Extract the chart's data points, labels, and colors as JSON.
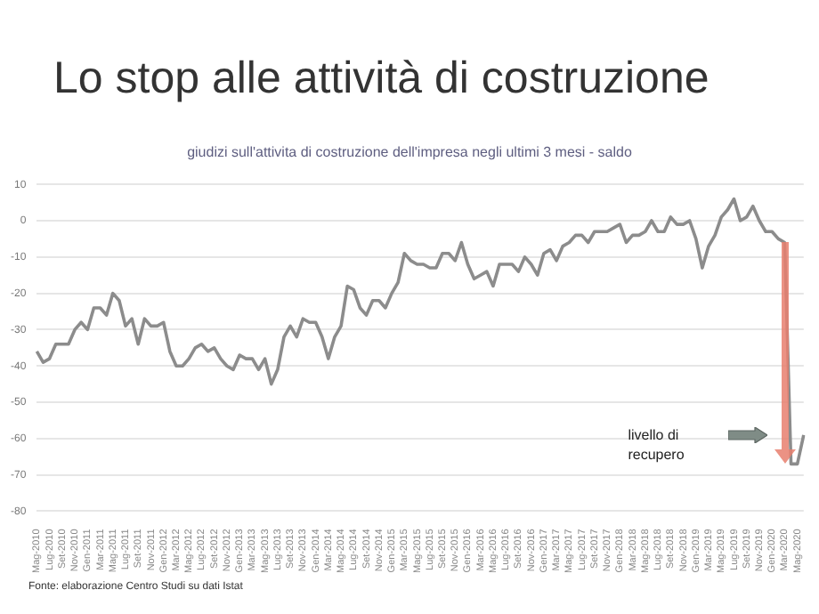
{
  "chart_data": {
    "type": "line",
    "title": "Lo stop alle attività di costruzione",
    "subtitle": "giudizi sull'attivita di costruzione dell'impresa negli ultimi 3 mesi - saldo",
    "annotations": [
      "livello di recupero",
      "Fonte: elaborazione Centro Studi su dati Istat"
    ],
    "categories": [
      "Mag-2010",
      null,
      "Lug-2010",
      null,
      "Set-2010",
      null,
      "Nov-2010",
      null,
      "Gen-2011",
      null,
      "Mar-2011",
      null,
      "Mag-2011",
      null,
      "Lug-2011",
      null,
      "Set-2011",
      null,
      "Nov-2011",
      null,
      "Gen-2012",
      null,
      "Mar-2012",
      null,
      "Mag-2012",
      null,
      "Lug-2012",
      null,
      "Set-2012",
      null,
      "Nov-2012",
      null,
      "Gen-2013",
      null,
      "Mar-2013",
      null,
      "Mag-2013",
      null,
      "Lug-2013",
      null,
      "Set-2013",
      null,
      "Nov-2013",
      null,
      "Gen-2014",
      null,
      "Mar-2014",
      null,
      "Mag-2014",
      null,
      "Lug-2014",
      null,
      "Set-2014",
      null,
      "Nov-2014",
      null,
      "Gen-2015",
      null,
      "Mar-2015",
      null,
      "Mag-2015",
      null,
      "Lug-2015",
      null,
      "Set-2015",
      null,
      "Nov-2015",
      null,
      "Gen-2016",
      null,
      "Mar-2016",
      null,
      "Mag-2016",
      null,
      "Lug-2016",
      null,
      "Set-2016",
      null,
      "Nov-2016",
      null,
      "Gen-2017",
      null,
      "Mar-2017",
      null,
      "Mag-2017",
      null,
      "Lug-2017",
      null,
      "Set-2017",
      null,
      "Nov-2017",
      null,
      "Gen-2018",
      null,
      "Mar-2018",
      null,
      "Mag-2018",
      null,
      "Lug-2018",
      null,
      "Set-2018",
      null,
      "Nov-2018",
      null,
      "Gen-2019",
      null,
      "Mar-2019",
      null,
      "Mag-2019",
      null,
      "Lug-2019",
      null,
      "Set-2019",
      null,
      "Nov-2019",
      null,
      "Gen-2020",
      null,
      "Mar-2020",
      null,
      "Mag-2020",
      null
    ],
    "series": [
      {
        "color": "#8c8c8c",
        "values": [
          -36,
          -39,
          -38,
          -34,
          -34,
          -34,
          -30,
          -28,
          -30,
          -24,
          -24,
          -26,
          -20,
          -22,
          -29,
          -27,
          -34,
          -27,
          -29,
          -29,
          -28,
          -36,
          -40,
          -40,
          -38,
          -35,
          -34,
          -36,
          -35,
          -38,
          -40,
          -41,
          -37,
          -38,
          -38,
          -41,
          -38,
          -45,
          -41,
          -32,
          -29,
          -32,
          -27,
          -28,
          -28,
          -32,
          -38,
          -32,
          -29,
          -18,
          -19,
          -24,
          -26,
          -22,
          -22,
          -24,
          -20,
          -17,
          -9,
          -11,
          -12,
          -12,
          -13,
          -13,
          -9,
          -9,
          -11,
          -6,
          -12,
          -16,
          -15,
          -14,
          -18,
          -12,
          -12,
          -12,
          -14,
          -10,
          -12,
          -15,
          -9,
          -8,
          -11,
          -7,
          -6,
          -4,
          -4,
          -6,
          -3,
          -3,
          -3,
          -2,
          -1,
          -6,
          -4,
          -4,
          -3,
          0,
          -3,
          -3,
          1,
          -1,
          -1,
          0,
          -5,
          -13,
          -7,
          -4,
          1,
          3,
          6,
          0,
          1,
          4,
          0,
          -3,
          -3,
          -5,
          -6,
          -67,
          -67,
          -59
        ]
      }
    ],
    "ylim": [
      -80,
      10
    ],
    "yticks": [
      -80,
      -70,
      -60,
      -50,
      -40,
      -30,
      -20,
      -10,
      0,
      10
    ],
    "grid": "y",
    "legend": false,
    "marker": "none",
    "line_style": "solid"
  }
}
